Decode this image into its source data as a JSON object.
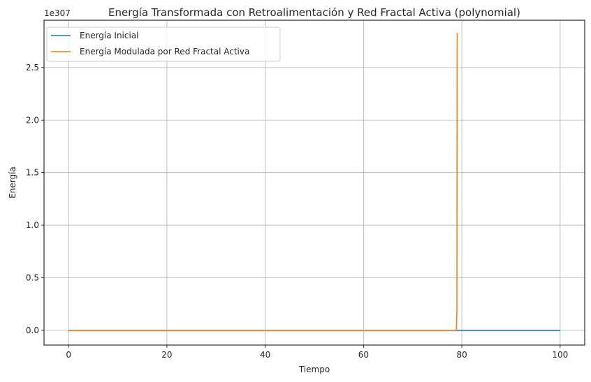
{
  "chart_data": {
    "type": "line",
    "title": "Energía Transformada con Retroalimentación y Red Fractal Activa (polynomial)",
    "xlabel": "Tiempo",
    "ylabel": "Energía",
    "y_offset_label": "1e307",
    "xlim": [
      -5,
      105
    ],
    "ylim": [
      -0.14,
      2.95
    ],
    "x_ticks": [
      0,
      20,
      40,
      60,
      80,
      100
    ],
    "x_tick_labels": [
      "0",
      "20",
      "40",
      "60",
      "80",
      "100"
    ],
    "y_ticks": [
      0.0,
      0.5,
      1.0,
      1.5,
      2.0,
      2.5
    ],
    "y_tick_labels": [
      "0.0",
      "0.5",
      "1.0",
      "1.5",
      "2.0",
      "2.5"
    ],
    "grid": true,
    "legend_position": "top-left",
    "series": [
      {
        "name": "Energía Inicial",
        "color": "#1f77b4",
        "x": [
          0,
          100
        ],
        "y": [
          0,
          0
        ]
      },
      {
        "name": "Energía Modulada por Red Fractal Activa",
        "color": "#ff7f0e",
        "x": [
          0,
          78.8,
          78.9,
          79.0,
          79.02,
          79.05
        ],
        "y": [
          0,
          0,
          0.02,
          0.2,
          1.5,
          2.83
        ]
      }
    ]
  }
}
